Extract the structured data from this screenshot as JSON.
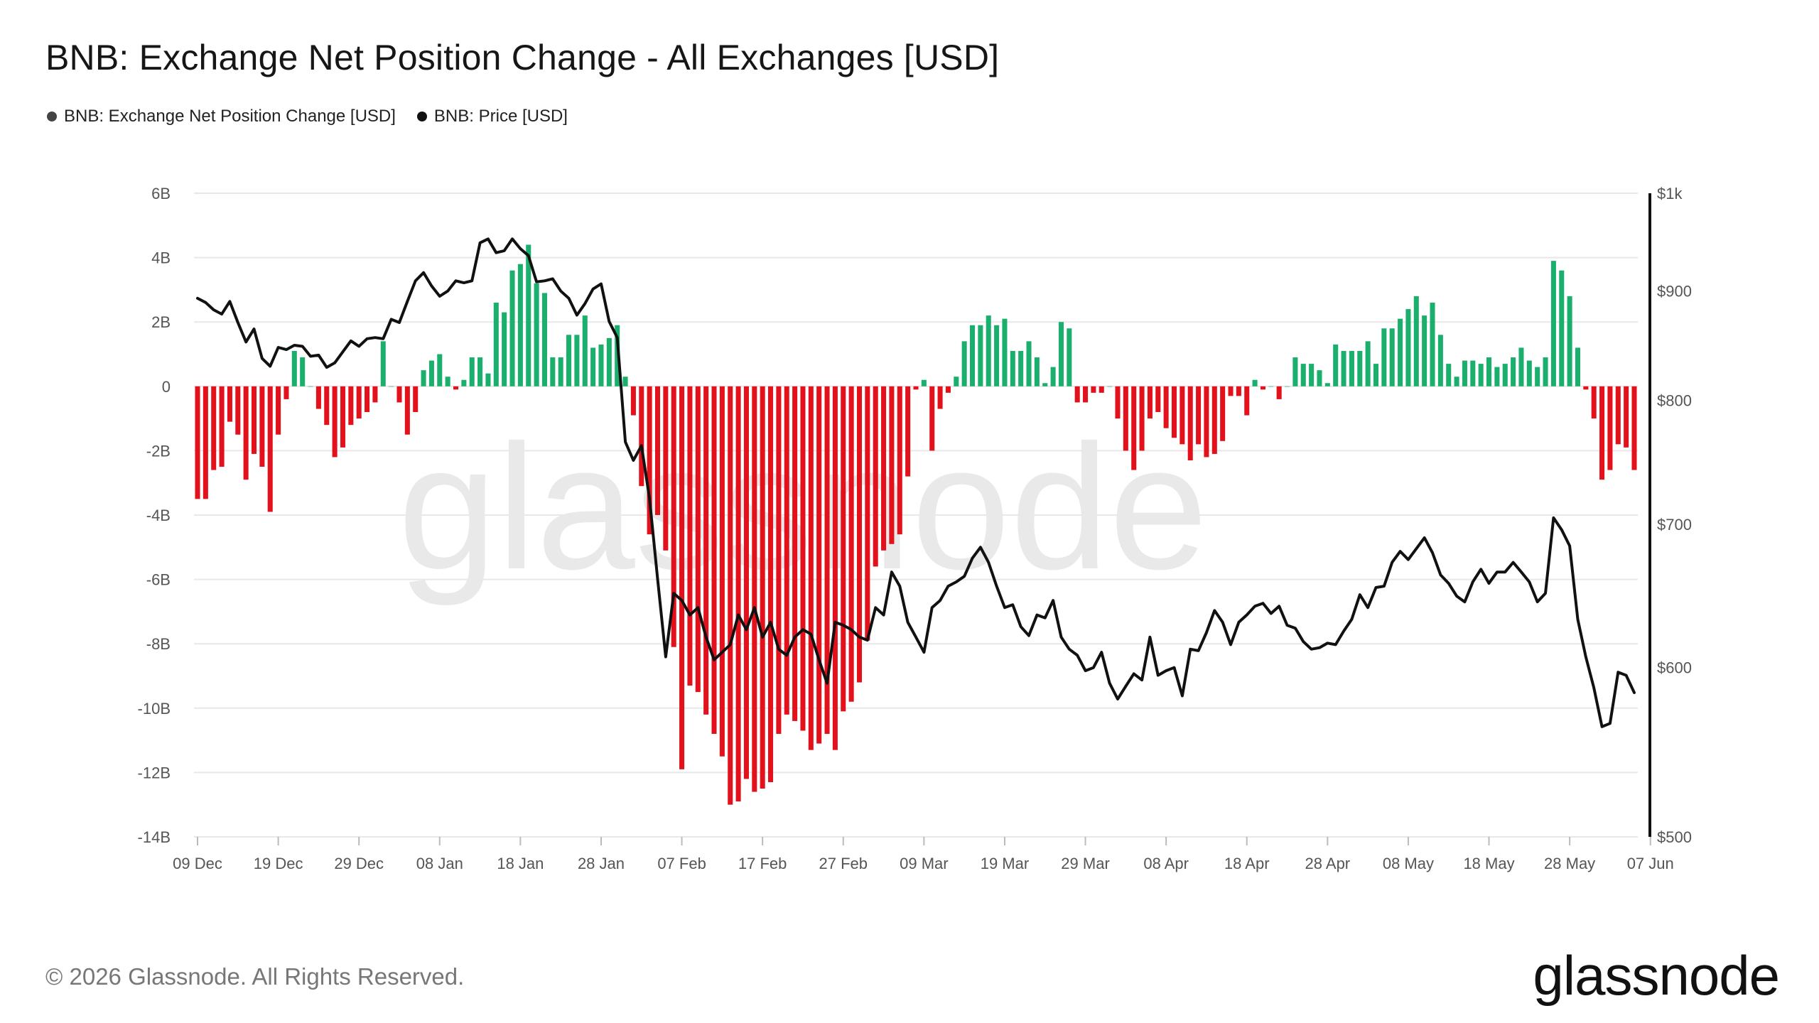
{
  "title": "BNB: Exchange Net Position Change - All Exchanges [USD]",
  "legend": [
    {
      "label": "BNB: Exchange Net Position Change [USD]",
      "color": "#444444"
    },
    {
      "label": "BNB: Price [USD]",
      "color": "#111111"
    }
  ],
  "footer": "© 2026 Glassnode. All Rights Reserved.",
  "brand": "glassnode",
  "watermark": "glassnode",
  "colors": {
    "positive": "#1aaf6c",
    "negative": "#e3111b",
    "price": "#111111",
    "grid": "#e8e8e8"
  },
  "chart_data": {
    "type": "bar",
    "title": "BNB: Exchange Net Position Change - All Exchanges [USD]",
    "x_ticks": [
      "09 Dec",
      "19 Dec",
      "29 Dec",
      "08 Jan",
      "18 Jan",
      "28 Jan",
      "07 Feb",
      "17 Feb",
      "27 Feb",
      "09 Mar",
      "19 Mar",
      "29 Mar",
      "08 Apr",
      "18 Apr",
      "28 Apr",
      "08 May",
      "18 May",
      "28 May",
      "07 Jun"
    ],
    "y_left": {
      "ticks": [
        "6B",
        "4B",
        "2B",
        "0",
        "-2B",
        "-4B",
        "-6B",
        "-8B",
        "-10B",
        "-12B",
        "-14B"
      ],
      "ylim": [
        -14,
        6
      ],
      "unit": "B USD"
    },
    "y_right": {
      "ticks": [
        "$1k",
        "$900",
        "$800",
        "$700",
        "$600",
        "$500"
      ],
      "values": [
        1000,
        900,
        800,
        700,
        600,
        500
      ],
      "scale": "log"
    },
    "grid": true,
    "legend_position": "top-left",
    "series": [
      {
        "name": "BNB: Exchange Net Position Change [USD]",
        "type": "bar",
        "start_date": "09 Dec",
        "interval_days": 1,
        "values": [
          -3.5,
          -3.5,
          -2.6,
          -2.5,
          -1.1,
          -1.5,
          -2.9,
          -2.1,
          -2.5,
          -3.9,
          -1.5,
          -0.4,
          1.1,
          0.9,
          0,
          -0.7,
          -1.2,
          -2.2,
          -1.9,
          -1.2,
          -1,
          -0.8,
          -0.5,
          1.4,
          0,
          -0.5,
          -1.5,
          -0.8,
          0.5,
          0.8,
          1,
          0.3,
          -0.1,
          0.2,
          0.9,
          0.9,
          0.4,
          2.6,
          2.3,
          3.6,
          3.8,
          4.4,
          3.2,
          2.9,
          0.9,
          0.9,
          1.6,
          1.6,
          2.2,
          1.2,
          1.3,
          1.5,
          1.9,
          0.3,
          -0.9,
          -3.1,
          -4.6,
          -4,
          -5.1,
          -8.1,
          -11.9,
          -9.3,
          -9.5,
          -10.2,
          -10.8,
          -11.5,
          -13,
          -12.9,
          -12.2,
          -12.6,
          -12.5,
          -12.3,
          -10.8,
          -10.2,
          -10.4,
          -10.7,
          -11.3,
          -11.1,
          -10.8,
          -11.3,
          -10.1,
          -9.8,
          -9.2,
          -7.9,
          -5.6,
          -5.1,
          -4.9,
          -4.6,
          -2.8,
          -0.1,
          0.2,
          -2,
          -0.7,
          -0.2,
          0.3,
          1.4,
          1.9,
          1.9,
          2.2,
          1.9,
          2.1,
          1.1,
          1.1,
          1.4,
          0.9,
          0.1,
          0.6,
          2,
          1.8,
          -0.5,
          -0.5,
          -0.2,
          -0.2,
          0,
          -1,
          -2,
          -2.6,
          -2,
          -1,
          -0.8,
          -1.3,
          -1.6,
          -1.8,
          -2.3,
          -1.8,
          -2.2,
          -2.1,
          -1.7,
          -0.3,
          -0.3,
          -0.9,
          0.2,
          -0.1,
          0,
          -0.4,
          0,
          0.9,
          0.7,
          0.7,
          0.5,
          0.1,
          1.3,
          1.1,
          1.1,
          1.1,
          1.4,
          0.7,
          1.8,
          1.8,
          2.1,
          2.4,
          2.8,
          2.2,
          2.6,
          1.6,
          0.7,
          0.3,
          0.8,
          0.8,
          0.7,
          0.9,
          0.6,
          0.7,
          0.9,
          1.2,
          0.8,
          0.6,
          0.9,
          3.9,
          3.6,
          2.8,
          1.2,
          -0.1,
          -1,
          -2.9,
          -2.6,
          -1.8,
          -1.9,
          -2.6
        ]
      },
      {
        "name": "BNB: Price [USD]",
        "type": "line",
        "start_date": "09 Dec",
        "interval_days": 1,
        "values": [
          893,
          889,
          882,
          878,
          890,
          870,
          852,
          864,
          837,
          830,
          847,
          845,
          849,
          848,
          839,
          840,
          829,
          833,
          843,
          853,
          848,
          855,
          856,
          855,
          873,
          870,
          890,
          910,
          918,
          905,
          895,
          900,
          910,
          908,
          910,
          948,
          952,
          938,
          940,
          952,
          942,
          935,
          909,
          910,
          912,
          900,
          893,
          877,
          888,
          902,
          907,
          871,
          856,
          765,
          750,
          762,
          720,
          660,
          607,
          650,
          645,
          635,
          640,
          620,
          605,
          610,
          615,
          635,
          625,
          640,
          620,
          630,
          612,
          608,
          620,
          625,
          622,
          605,
          590,
          630,
          628,
          625,
          620,
          618,
          640,
          635,
          665,
          655,
          630,
          620,
          610,
          640,
          645,
          655,
          658,
          662,
          675,
          683,
          672,
          655,
          640,
          642,
          627,
          621,
          635,
          633,
          645,
          620,
          612,
          608,
          598,
          600,
          610,
          590,
          580,
          588,
          596,
          592,
          620,
          595,
          598,
          600,
          582,
          612,
          611,
          623,
          638,
          630,
          615,
          630,
          635,
          641,
          643,
          636,
          641,
          628,
          626,
          617,
          612,
          613,
          616,
          615,
          624,
          632,
          649,
          640,
          654,
          655,
          672,
          680,
          674,
          682,
          690,
          679,
          663,
          657,
          648,
          644,
          658,
          667,
          657,
          665,
          665,
          672,
          665,
          658,
          644,
          650,
          705,
          696,
          684,
          632,
          607,
          587,
          563,
          565,
          597,
          595,
          584
        ]
      }
    ]
  }
}
